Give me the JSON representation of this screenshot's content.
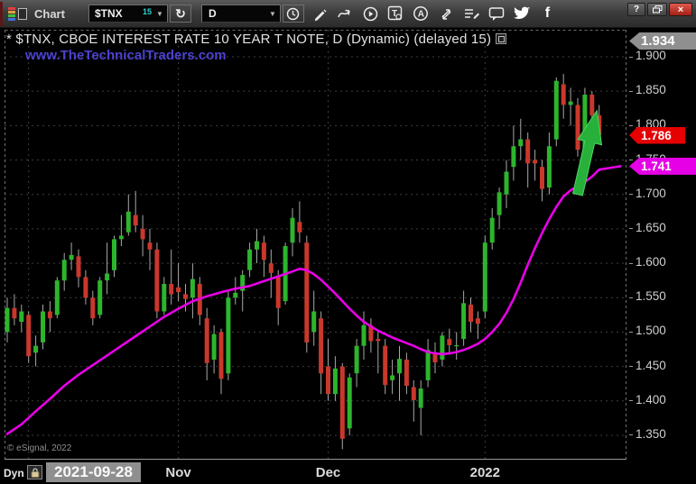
{
  "window": {
    "title": "Chart",
    "controls": {
      "help": "?",
      "close": "×"
    }
  },
  "toolbar": {
    "symbol": "$TNX",
    "symbol_badge": "15",
    "interval": "D",
    "icons": {
      "dropdown_caret": "▼",
      "refresh": "↻",
      "text_tool": "T",
      "annotate_letter": "A",
      "facebook": "f"
    }
  },
  "chart": {
    "title": "* $TNX, CBOE INTEREST RATE 10 YEAR T NOTE, D (Dynamic) (delayed 15)",
    "watermark": "www.TheTechnicalTraders.com",
    "copyright": "© eSignal, 2022"
  },
  "bottom": {
    "dyn_label": "Dyn",
    "start_date": "2021-09-28"
  },
  "chart_data": {
    "type": "candlestick",
    "symbol": "$TNX",
    "interval": "D",
    "ylim": [
      1.32,
      1.935
    ],
    "y_ticks": [
      1.9,
      1.85,
      1.8,
      1.75,
      1.7,
      1.65,
      1.6,
      1.55,
      1.5,
      1.45,
      1.4,
      1.35
    ],
    "colors": {
      "up": "#2db52d",
      "down": "#c9382c",
      "wick": "#a8a8a8",
      "ma": "#e800e8",
      "arrow": "#27b13a",
      "tag_last_bg": "#e60000",
      "tag_ma_bg": "#e600e6",
      "tag_high_bg": "#8f8f8f"
    },
    "tags": {
      "high": {
        "value": 1.934,
        "label": "1.934"
      },
      "last": {
        "value": 1.786,
        "label": "1.786"
      },
      "ma": {
        "value": 1.741,
        "label": "1.741"
      }
    },
    "x_axis": {
      "start_label": "2021-09-28",
      "gridline_indices": [
        3,
        24,
        45,
        67
      ],
      "month_labels": [
        {
          "label": "Nov",
          "index": 24
        },
        {
          "label": "Dec",
          "index": 45
        },
        {
          "label": "2022",
          "index": 67
        }
      ]
    },
    "candles": [
      [
        "09-28",
        1.5,
        1.55,
        1.485,
        1.535
      ],
      [
        "09-29",
        1.535,
        1.555,
        1.51,
        1.52
      ],
      [
        "09-30",
        1.515,
        1.54,
        1.5,
        1.53
      ],
      [
        "10-01",
        1.525,
        1.53,
        1.455,
        1.465
      ],
      [
        "10-04",
        1.47,
        1.495,
        1.45,
        1.48
      ],
      [
        "10-05",
        1.485,
        1.54,
        1.475,
        1.53
      ],
      [
        "10-06",
        1.53,
        1.545,
        1.5,
        1.52
      ],
      [
        "10-07",
        1.525,
        1.58,
        1.52,
        1.575
      ],
      [
        "10-08",
        1.575,
        1.615,
        1.56,
        1.605
      ],
      [
        "10-11",
        1.605,
        1.63,
        1.59,
        1.612
      ],
      [
        "10-12",
        1.61,
        1.62,
        1.565,
        1.58
      ],
      [
        "10-13",
        1.58,
        1.59,
        1.54,
        1.55
      ],
      [
        "10-14",
        1.55,
        1.56,
        1.51,
        1.52
      ],
      [
        "10-15",
        1.525,
        1.58,
        1.52,
        1.575
      ],
      [
        "10-18",
        1.575,
        1.63,
        1.555,
        1.585
      ],
      [
        "10-19",
        1.59,
        1.64,
        1.58,
        1.635
      ],
      [
        "10-20",
        1.635,
        1.67,
        1.625,
        1.64
      ],
      [
        "10-21",
        1.645,
        1.7,
        1.64,
        1.675
      ],
      [
        "10-22",
        1.67,
        1.705,
        1.645,
        1.655
      ],
      [
        "10-25",
        1.65,
        1.67,
        1.61,
        1.635
      ],
      [
        "10-26",
        1.63,
        1.65,
        1.59,
        1.62
      ],
      [
        "10-27",
        1.62,
        1.63,
        1.52,
        1.53
      ],
      [
        "10-28",
        1.53,
        1.58,
        1.525,
        1.57
      ],
      [
        "10-29",
        1.57,
        1.62,
        1.54,
        1.555
      ],
      [
        "11-01",
        1.565,
        1.6,
        1.545,
        1.558
      ],
      [
        "11-02",
        1.555,
        1.57,
        1.53,
        1.548
      ],
      [
        "11-03",
        1.55,
        1.6,
        1.52,
        1.577
      ],
      [
        "11-04",
        1.57,
        1.58,
        1.51,
        1.525
      ],
      [
        "11-05",
        1.52,
        1.535,
        1.43,
        1.455
      ],
      [
        "11-08",
        1.46,
        1.51,
        1.44,
        1.497
      ],
      [
        "11-09",
        1.5,
        1.505,
        1.41,
        1.432
      ],
      [
        "11-10",
        1.44,
        1.56,
        1.43,
        1.55
      ],
      [
        "11-11",
        1.55,
        1.58,
        1.54,
        1.557
      ],
      [
        "11-12",
        1.56,
        1.59,
        1.53,
        1.583
      ],
      [
        "11-15",
        1.59,
        1.63,
        1.58,
        1.62
      ],
      [
        "11-16",
        1.62,
        1.65,
        1.6,
        1.632
      ],
      [
        "11-17",
        1.63,
        1.64,
        1.58,
        1.605
      ],
      [
        "11-18",
        1.6,
        1.62,
        1.55,
        1.586
      ],
      [
        "11-19",
        1.58,
        1.59,
        1.51,
        1.535
      ],
      [
        "11-22",
        1.545,
        1.63,
        1.54,
        1.625
      ],
      [
        "11-23",
        1.63,
        1.68,
        1.61,
        1.666
      ],
      [
        "11-24",
        1.66,
        1.69,
        1.63,
        1.645
      ],
      [
        "11-26",
        1.63,
        1.64,
        1.47,
        1.485
      ],
      [
        "11-29",
        1.5,
        1.56,
        1.48,
        1.53
      ],
      [
        "11-30",
        1.52,
        1.53,
        1.41,
        1.44
      ],
      [
        "12-01",
        1.45,
        1.49,
        1.4,
        1.41
      ],
      [
        "12-02",
        1.41,
        1.465,
        1.4,
        1.447
      ],
      [
        "12-03",
        1.45,
        1.455,
        1.33,
        1.345
      ],
      [
        "12-06",
        1.36,
        1.44,
        1.35,
        1.434
      ],
      [
        "12-07",
        1.44,
        1.49,
        1.42,
        1.48
      ],
      [
        "12-08",
        1.48,
        1.53,
        1.46,
        1.51
      ],
      [
        "12-09",
        1.51,
        1.52,
        1.47,
        1.487
      ],
      [
        "12-10",
        1.49,
        1.5,
        1.44,
        1.487
      ],
      [
        "12-13",
        1.48,
        1.49,
        1.41,
        1.423
      ],
      [
        "12-14",
        1.43,
        1.46,
        1.41,
        1.437
      ],
      [
        "12-15",
        1.44,
        1.48,
        1.4,
        1.461
      ],
      [
        "12-16",
        1.46,
        1.47,
        1.41,
        1.422
      ],
      [
        "12-17",
        1.42,
        1.43,
        1.37,
        1.401
      ],
      [
        "12-20",
        1.39,
        1.43,
        1.35,
        1.418
      ],
      [
        "12-21",
        1.43,
        1.49,
        1.42,
        1.474
      ],
      [
        "12-22",
        1.47,
        1.485,
        1.44,
        1.456
      ],
      [
        "12-23",
        1.46,
        1.5,
        1.45,
        1.495
      ],
      [
        "12-27",
        1.49,
        1.505,
        1.47,
        1.481
      ],
      [
        "12-28",
        1.48,
        1.5,
        1.46,
        1.481
      ],
      [
        "12-29",
        1.49,
        1.56,
        1.48,
        1.542
      ],
      [
        "12-30",
        1.54,
        1.55,
        1.5,
        1.515
      ],
      [
        "12-31",
        1.52,
        1.53,
        1.49,
        1.512
      ],
      [
        "01-03",
        1.53,
        1.64,
        1.52,
        1.63
      ],
      [
        "01-04",
        1.63,
        1.68,
        1.62,
        1.666
      ],
      [
        "01-05",
        1.67,
        1.71,
        1.65,
        1.703
      ],
      [
        "01-06",
        1.7,
        1.75,
        1.68,
        1.733
      ],
      [
        "01-07",
        1.74,
        1.8,
        1.72,
        1.77
      ],
      [
        "01-10",
        1.77,
        1.81,
        1.75,
        1.78
      ],
      [
        "01-11",
        1.78,
        1.79,
        1.71,
        1.745
      ],
      [
        "01-12",
        1.75,
        1.765,
        1.72,
        1.745
      ],
      [
        "01-13",
        1.74,
        1.75,
        1.69,
        1.708
      ],
      [
        "01-14",
        1.71,
        1.79,
        1.7,
        1.77
      ],
      [
        "01-18",
        1.78,
        1.87,
        1.77,
        1.865
      ],
      [
        "01-19",
        1.86,
        1.875,
        1.81,
        1.83
      ],
      [
        "01-20",
        1.83,
        1.855,
        1.8,
        1.835
      ],
      [
        "01-21",
        1.83,
        1.84,
        1.755,
        1.765
      ],
      [
        "01-24",
        1.73,
        1.855,
        1.715,
        1.845
      ],
      [
        "01-25",
        1.845,
        1.85,
        1.8,
        1.815
      ],
      [
        "01-26",
        1.815,
        1.83,
        1.775,
        1.786
      ]
    ],
    "ma_points": [
      [
        0,
        1.352
      ],
      [
        2,
        1.366
      ],
      [
        4,
        1.385
      ],
      [
        6,
        1.403
      ],
      [
        8,
        1.422
      ],
      [
        10,
        1.438
      ],
      [
        12,
        1.452
      ],
      [
        14,
        1.466
      ],
      [
        16,
        1.48
      ],
      [
        18,
        1.494
      ],
      [
        20,
        1.508
      ],
      [
        22,
        1.522
      ],
      [
        24,
        1.534
      ],
      [
        26,
        1.545
      ],
      [
        28,
        1.552
      ],
      [
        30,
        1.558
      ],
      [
        32,
        1.563
      ],
      [
        34,
        1.567
      ],
      [
        36,
        1.574
      ],
      [
        38,
        1.581
      ],
      [
        40,
        1.588
      ],
      [
        41,
        1.592
      ],
      [
        42,
        1.59
      ],
      [
        43,
        1.584
      ],
      [
        44,
        1.576
      ],
      [
        45,
        1.566
      ],
      [
        46,
        1.556
      ],
      [
        47,
        1.545
      ],
      [
        48,
        1.534
      ],
      [
        49,
        1.524
      ],
      [
        50,
        1.515
      ],
      [
        51,
        1.508
      ],
      [
        52,
        1.502
      ],
      [
        53,
        1.497
      ],
      [
        54,
        1.492
      ],
      [
        55,
        1.488
      ],
      [
        56,
        1.484
      ],
      [
        57,
        1.48
      ],
      [
        58,
        1.475
      ],
      [
        59,
        1.471
      ],
      [
        60,
        1.469
      ],
      [
        61,
        1.468
      ],
      [
        62,
        1.469
      ],
      [
        63,
        1.471
      ],
      [
        64,
        1.474
      ],
      [
        65,
        1.478
      ],
      [
        66,
        1.483
      ],
      [
        67,
        1.49
      ],
      [
        68,
        1.5
      ],
      [
        69,
        1.512
      ],
      [
        70,
        1.528
      ],
      [
        71,
        1.548
      ],
      [
        72,
        1.572
      ],
      [
        73,
        1.598
      ],
      [
        74,
        1.622
      ],
      [
        75,
        1.644
      ],
      [
        76,
        1.664
      ],
      [
        77,
        1.682
      ],
      [
        78,
        1.697
      ],
      [
        79,
        1.706
      ],
      [
        80,
        1.712
      ],
      [
        81,
        1.718
      ],
      [
        82,
        1.726
      ],
      [
        83,
        1.736
      ],
      [
        86,
        1.741
      ]
    ],
    "arrow": {
      "from": [
        80,
        1.7
      ],
      "to": [
        82.7,
        1.822
      ]
    }
  }
}
